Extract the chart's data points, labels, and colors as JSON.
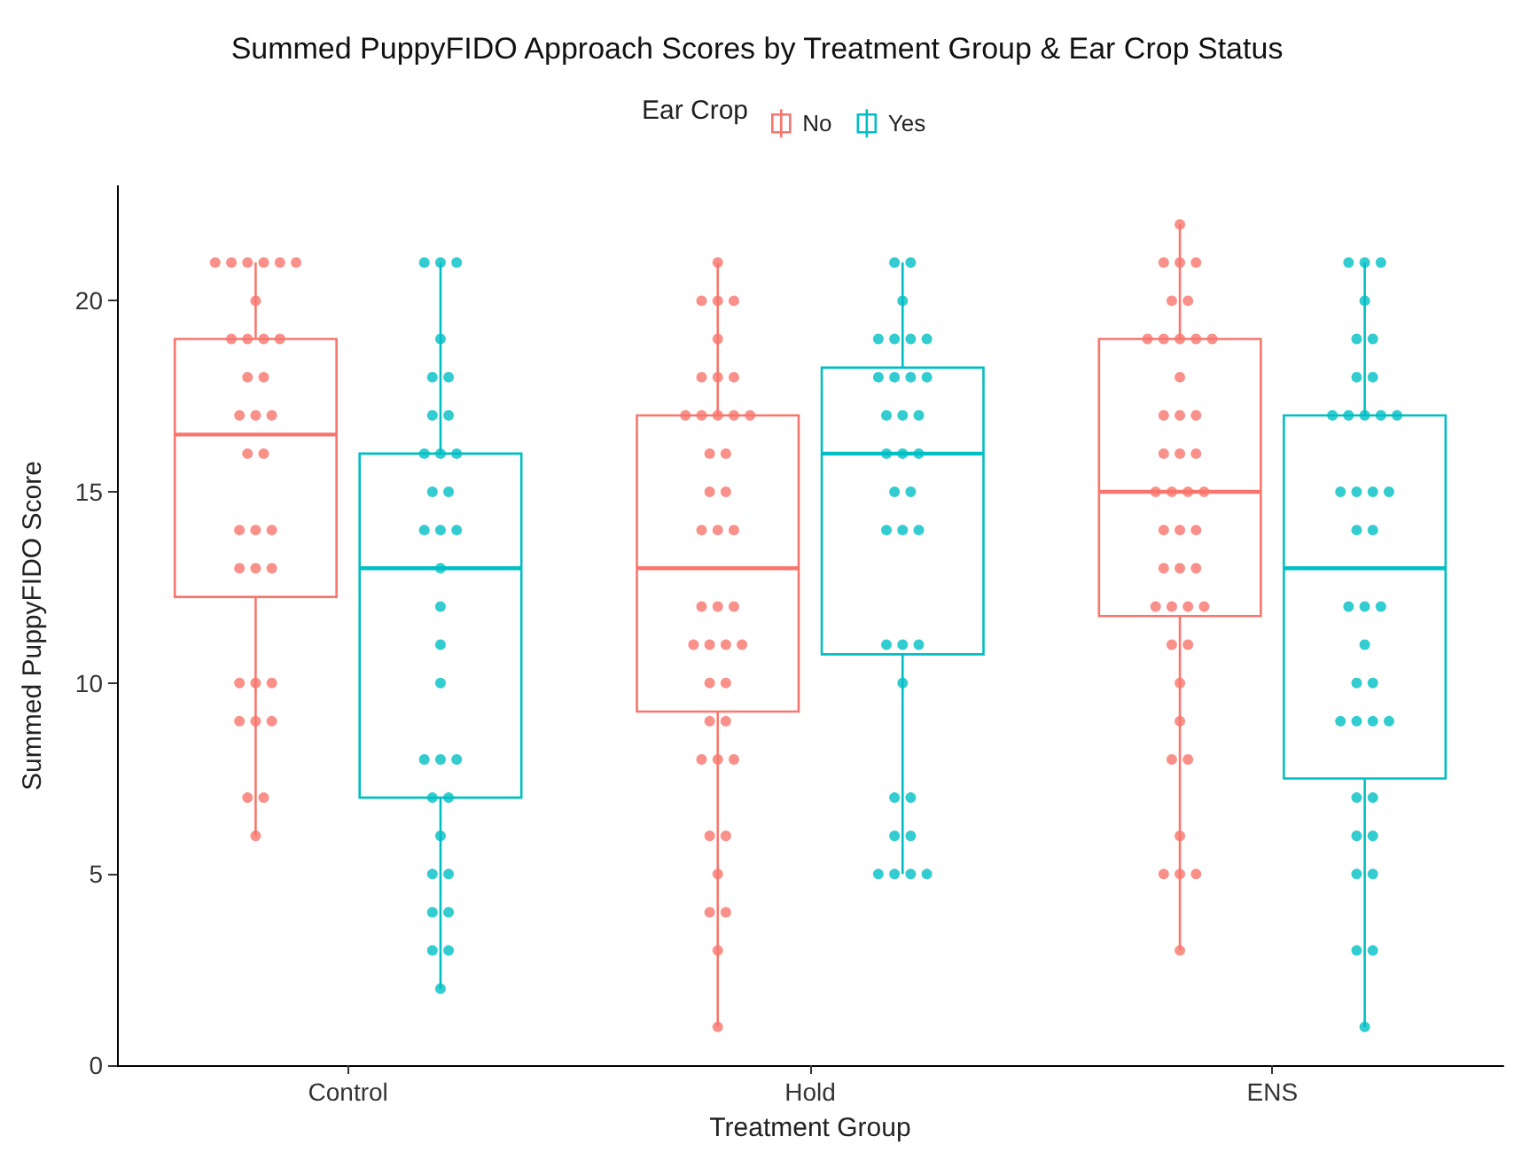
{
  "chart_data": {
    "type": "box",
    "title": "Summed PuppyFIDO Approach Scores by Treatment Group & Ear Crop Status",
    "xlabel": "Treatment Group",
    "ylabel": "Summed PuppyFIDO Score",
    "legend_title": "Ear Crop",
    "legend": "top",
    "grid": false,
    "categories": [
      "Control",
      "Hold",
      "ENS"
    ],
    "ylim": [
      0,
      23
    ],
    "yticks": [
      0,
      5,
      10,
      15,
      20
    ],
    "series": [
      {
        "name": "No",
        "color": "#f8766d",
        "boxes": [
          {
            "low": 6,
            "q1": 12.25,
            "median": 16.5,
            "q3": 19,
            "high": 21
          },
          {
            "low": 1,
            "q1": 9.25,
            "median": 13,
            "q3": 17,
            "high": 21
          },
          {
            "low": 3,
            "q1": 11.75,
            "median": 15,
            "q3": 19,
            "high": 22
          }
        ]
      },
      {
        "name": "Yes",
        "color": "#00bfc4",
        "boxes": [
          {
            "low": 2,
            "q1": 7,
            "median": 13,
            "q3": 16,
            "high": 21
          },
          {
            "low": 5,
            "q1": 10.75,
            "median": 16,
            "q3": 18.25,
            "high": 21
          },
          {
            "low": 1,
            "q1": 7.5,
            "median": 13,
            "q3": 17,
            "high": 21
          }
        ]
      },
      {
        "type": "scatter",
        "color": "#f8766d",
        "x": [
          "Control",
          "Control",
          "Control",
          "Control",
          "Control",
          "Control",
          "Control",
          "Control",
          "Control",
          "Control",
          "Control",
          "Control",
          "Control",
          "Control",
          "Control",
          "Control",
          "Control",
          "Control",
          "Control",
          "Control",
          "Control",
          "Control",
          "Control",
          "Control",
          "Control",
          "Control",
          "Control",
          "Control",
          "Control",
          "Control",
          "Control",
          "Control",
          "Control",
          "Hold",
          "Hold",
          "Hold",
          "Hold",
          "Hold",
          "Hold",
          "Hold",
          "Hold",
          "Hold",
          "Hold",
          "Hold",
          "Hold",
          "Hold",
          "Hold",
          "Hold",
          "Hold",
          "Hold",
          "Hold",
          "Hold",
          "Hold",
          "Hold",
          "Hold",
          "Hold",
          "Hold",
          "Hold",
          "Hold",
          "Hold",
          "Hold",
          "Hold",
          "Hold",
          "Hold",
          "Hold",
          "Hold",
          "Hold",
          "Hold",
          "Hold",
          "Hold",
          "Hold",
          "Hold",
          "Hold",
          "Hold",
          "ENS",
          "ENS",
          "ENS",
          "ENS",
          "ENS",
          "ENS",
          "ENS",
          "ENS",
          "ENS",
          "ENS",
          "ENS",
          "ENS",
          "ENS",
          "ENS",
          "ENS",
          "ENS",
          "ENS",
          "ENS",
          "ENS",
          "ENS",
          "ENS",
          "ENS",
          "ENS",
          "ENS",
          "ENS",
          "ENS",
          "ENS",
          "ENS",
          "ENS",
          "ENS",
          "ENS",
          "ENS",
          "ENS",
          "ENS",
          "ENS",
          "ENS",
          "ENS",
          "ENS",
          "ENS",
          "ENS",
          "ENS",
          "ENS",
          "ENS"
        ],
        "values": [
          21,
          21,
          21,
          21,
          21,
          21,
          20,
          19,
          19,
          19,
          19,
          18,
          18,
          17,
          17,
          17,
          16,
          16,
          14,
          14,
          14,
          13,
          13,
          13,
          10,
          10,
          10,
          9,
          9,
          9,
          7,
          7,
          6,
          21,
          20,
          20,
          20,
          19,
          18,
          18,
          18,
          17,
          17,
          17,
          17,
          17,
          16,
          16,
          15,
          15,
          14,
          14,
          14,
          12,
          12,
          12,
          11,
          11,
          11,
          11,
          10,
          10,
          9,
          9,
          8,
          8,
          8,
          6,
          6,
          5,
          4,
          4,
          3,
          1,
          22,
          21,
          21,
          21,
          20,
          20,
          19,
          19,
          19,
          19,
          19,
          18,
          17,
          17,
          17,
          16,
          16,
          16,
          15,
          15,
          15,
          15,
          14,
          14,
          14,
          13,
          13,
          13,
          12,
          12,
          12,
          12,
          11,
          11,
          10,
          9,
          8,
          8,
          6,
          5,
          5,
          5,
          3
        ]
      },
      {
        "type": "scatter",
        "color": "#00bfc4",
        "x": [
          "Control",
          "Control",
          "Control",
          "Control",
          "Control",
          "Control",
          "Control",
          "Control",
          "Control",
          "Control",
          "Control",
          "Control",
          "Control",
          "Control",
          "Control",
          "Control",
          "Control",
          "Control",
          "Control",
          "Control",
          "Control",
          "Control",
          "Control",
          "Control",
          "Control",
          "Control",
          "Control",
          "Control",
          "Control",
          "Control",
          "Control",
          "Control",
          "Control",
          "Hold",
          "Hold",
          "Hold",
          "Hold",
          "Hold",
          "Hold",
          "Hold",
          "Hold",
          "Hold",
          "Hold",
          "Hold",
          "Hold",
          "Hold",
          "Hold",
          "Hold",
          "Hold",
          "Hold",
          "Hold",
          "Hold",
          "Hold",
          "Hold",
          "Hold",
          "Hold",
          "Hold",
          "Hold",
          "Hold",
          "Hold",
          "Hold",
          "Hold",
          "Hold",
          "Hold",
          "Hold",
          "Hold",
          "Hold",
          "ENS",
          "ENS",
          "ENS",
          "ENS",
          "ENS",
          "ENS",
          "ENS",
          "ENS",
          "ENS",
          "ENS",
          "ENS",
          "ENS",
          "ENS",
          "ENS",
          "ENS",
          "ENS",
          "ENS",
          "ENS",
          "ENS",
          "ENS",
          "ENS",
          "ENS",
          "ENS",
          "ENS",
          "ENS",
          "ENS",
          "ENS",
          "ENS",
          "ENS",
          "ENS",
          "ENS",
          "ENS",
          "ENS",
          "ENS",
          "ENS",
          "ENS",
          "ENS",
          "ENS"
        ],
        "values": [
          21,
          21,
          21,
          19,
          18,
          18,
          17,
          17,
          16,
          16,
          16,
          15,
          15,
          14,
          14,
          14,
          13,
          12,
          11,
          10,
          8,
          8,
          8,
          7,
          7,
          6,
          5,
          5,
          4,
          4,
          3,
          3,
          2,
          21,
          21,
          20,
          19,
          19,
          19,
          19,
          18,
          18,
          18,
          18,
          17,
          17,
          17,
          16,
          16,
          16,
          15,
          15,
          14,
          14,
          14,
          11,
          11,
          11,
          10,
          7,
          7,
          6,
          6,
          5,
          5,
          5,
          5,
          21,
          21,
          21,
          20,
          19,
          19,
          18,
          18,
          17,
          17,
          17,
          17,
          17,
          15,
          15,
          15,
          15,
          14,
          14,
          12,
          12,
          12,
          11,
          10,
          10,
          9,
          9,
          9,
          9,
          7,
          7,
          6,
          6,
          5,
          5,
          3,
          3,
          1
        ]
      }
    ]
  }
}
